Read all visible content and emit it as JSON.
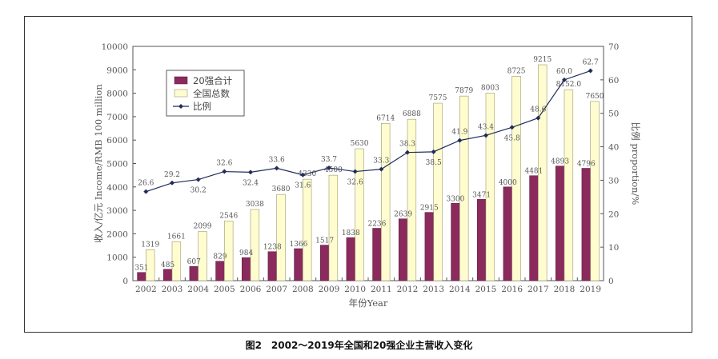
{
  "caption": "图2　2002～2019年全国和20强企业主营收入变化",
  "chart_data": {
    "type": "bar",
    "categories": [
      "2002",
      "2003",
      "2004",
      "2005",
      "2006",
      "2007",
      "2008",
      "2009",
      "2010",
      "2011",
      "2012",
      "2013",
      "2014",
      "2015",
      "2016",
      "2017",
      "2018",
      "2019"
    ],
    "series": [
      {
        "name": "20强合计",
        "kind": "bar",
        "color": "#8B2A5C",
        "values": [
          351,
          485,
          607,
          829,
          984,
          1238,
          1366,
          1517,
          1838,
          2236,
          2639,
          2915,
          3300,
          3471,
          4000,
          4481,
          4893,
          4796
        ]
      },
      {
        "name": "全国总数",
        "kind": "bar",
        "color": "#FFFDD0",
        "values": [
          1319,
          1661,
          2099,
          2546,
          3038,
          3680,
          4330,
          4500,
          5630,
          6714,
          6888,
          7575,
          7879,
          8003,
          8725,
          9215,
          8152,
          7650
        ]
      },
      {
        "name": "比例",
        "kind": "line",
        "axis": "right",
        "color": "#1F2D5A",
        "values": [
          26.6,
          29.2,
          30.2,
          32.6,
          32.4,
          33.6,
          31.6,
          33.7,
          32.6,
          33.3,
          38.3,
          38.5,
          41.9,
          43.4,
          45.8,
          48.6,
          60.0,
          62.7
        ]
      }
    ],
    "bar_labels": {
      "top": [
        "351",
        "485",
        "607",
        "829",
        "984",
        "1238",
        "1366",
        "1517",
        "1838",
        "2236",
        "2639",
        "2915",
        "3300",
        "3471",
        "4000",
        "4481",
        "4893",
        "4796"
      ],
      "total": [
        "1319",
        "1661",
        "2099",
        "2546",
        "3038",
        "3680",
        "4330",
        "4500",
        "5630",
        "6714",
        "6888",
        "7575",
        "7879",
        "8003",
        "8725",
        "9215",
        "8152.0",
        "7650"
      ]
    },
    "line_labels": [
      "26.6",
      "29.2",
      "30.2",
      "32.6",
      "32.4",
      "33.6",
      "31.6",
      "33.7",
      "32.6",
      "33.3",
      "38.3",
      "38.5",
      "41.9",
      "43.4",
      "45.8",
      "48.6",
      "60.0",
      "62.7"
    ],
    "xlabel": "年份Year",
    "ylabel": "收入/亿元 Income/RMB 100 million",
    "y2label": "比例 proportion/%",
    "ylim": [
      0,
      10000
    ],
    "yticks": [
      0,
      1000,
      2000,
      3000,
      4000,
      5000,
      6000,
      7000,
      8000,
      9000,
      10000
    ],
    "y2lim": [
      0,
      70
    ],
    "y2ticks": [
      0,
      10,
      20,
      30,
      40,
      50,
      60,
      70
    ],
    "grid": false,
    "legend_position": "top-left"
  }
}
